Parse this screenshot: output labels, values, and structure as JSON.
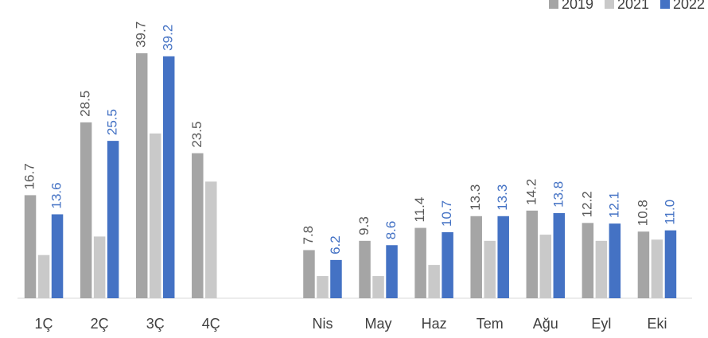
{
  "chart_data": {
    "type": "bar",
    "categories": [
      "1Ç",
      "2Ç",
      "3Ç",
      "4Ç",
      null,
      "Nis",
      "May",
      "Haz",
      "Tem",
      "Ağu",
      "Eyl",
      "Eki"
    ],
    "series": [
      {
        "name": "2019",
        "color": "#a5a5a5",
        "label_color": "#595959",
        "values": [
          16.7,
          28.5,
          39.7,
          23.5,
          null,
          7.8,
          9.3,
          11.4,
          13.3,
          14.2,
          12.2,
          10.8
        ],
        "value_labels": [
          "16.7",
          "28.5",
          "39.7",
          "23.5",
          null,
          "7.8",
          "9.3",
          "11.4",
          "13.3",
          "14.2",
          "12.2",
          "10.8"
        ]
      },
      {
        "name": "2021",
        "color": "#c9c9c9",
        "values": [
          7.0,
          10.0,
          26.7,
          18.9,
          null,
          3.6,
          3.6,
          5.4,
          9.3,
          10.3,
          9.3,
          9.5
        ]
      },
      {
        "name": "2022",
        "color": "#4472c4",
        "label_color": "#4472c4",
        "values": [
          13.6,
          25.5,
          39.2,
          null,
          null,
          6.2,
          8.6,
          10.7,
          13.3,
          13.8,
          12.1,
          11.0
        ],
        "value_labels": [
          "13.6",
          "25.5",
          "39.2",
          null,
          null,
          "6.2",
          "8.6",
          "10.7",
          "13.3",
          "13.8",
          "12.1",
          "11.0"
        ]
      }
    ],
    "ylim": [
      0,
      40
    ],
    "legend": "top-right"
  }
}
